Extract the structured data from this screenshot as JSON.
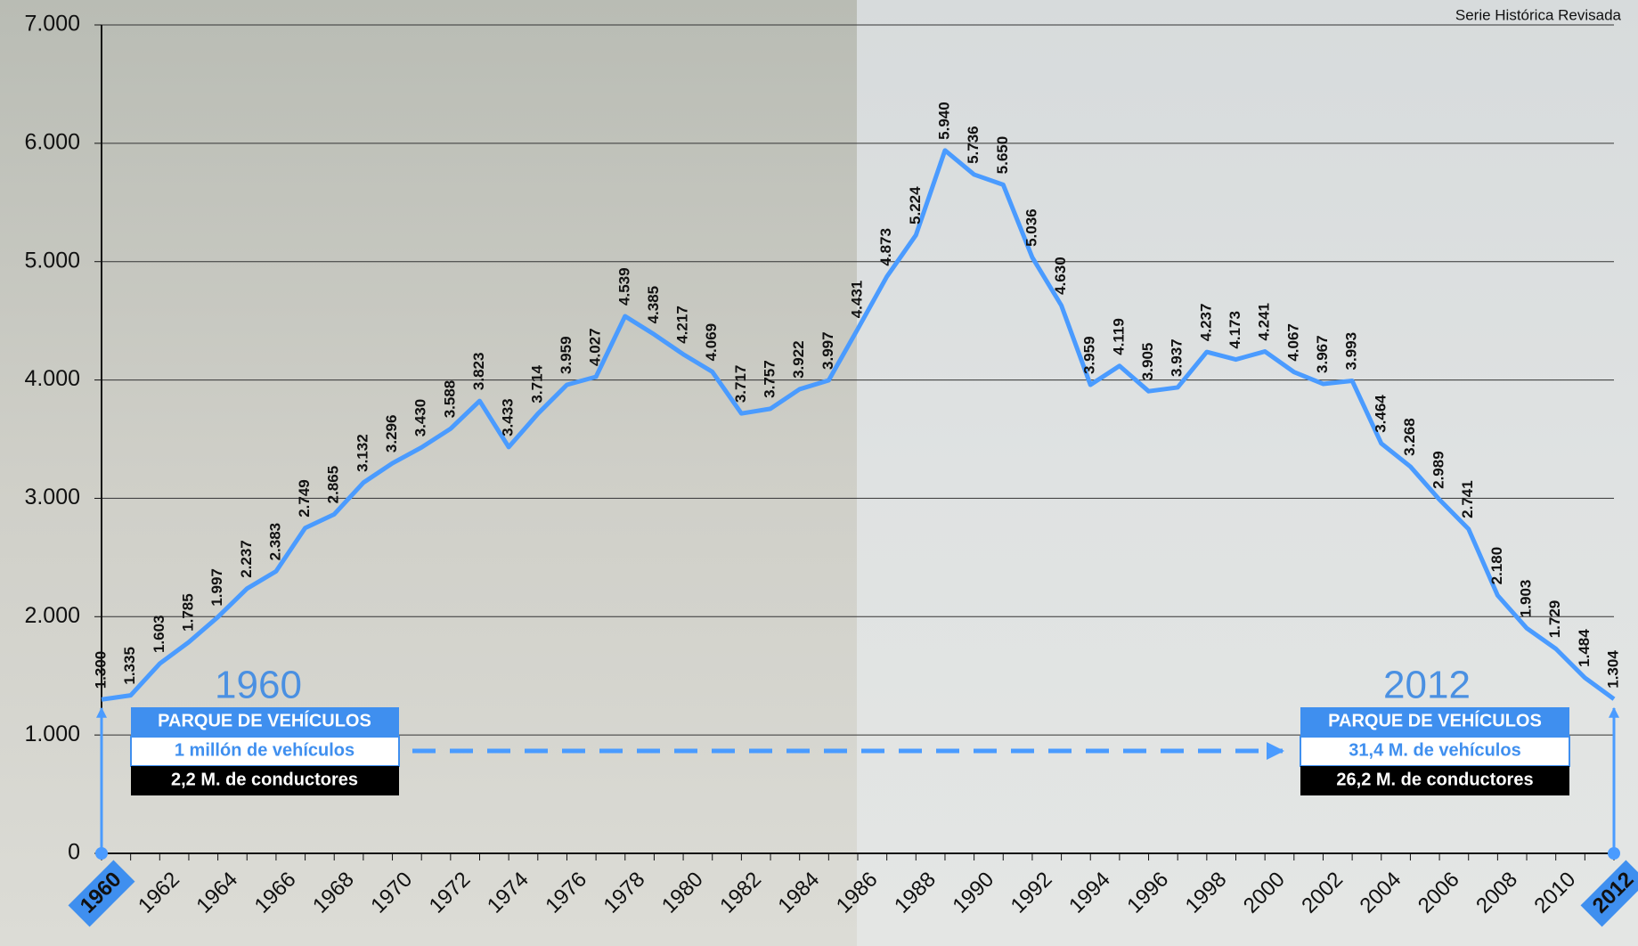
{
  "chart_data": {
    "type": "line",
    "subtitle": "Serie Histórica Revisada",
    "categories": [
      "1960",
      null,
      "1962",
      null,
      "1964",
      null,
      "1966",
      null,
      "1968",
      null,
      "1970",
      null,
      "1972",
      null,
      "1974",
      null,
      "1976",
      null,
      "1978",
      null,
      "1980",
      null,
      "1982",
      null,
      "1984",
      null,
      "1986",
      null,
      "1988",
      null,
      "1990",
      null,
      "1992",
      null,
      "1994",
      null,
      "1996",
      null,
      "1998",
      null,
      "2000",
      null,
      "2002",
      null,
      "2004",
      null,
      "2006",
      null,
      "2008",
      null,
      "2010",
      null,
      "2012"
    ],
    "values": [
      1300,
      1335,
      1603,
      1785,
      1997,
      2237,
      2383,
      2749,
      2865,
      3132,
      3296,
      3430,
      3588,
      3823,
      3433,
      3714,
      3959,
      4027,
      4539,
      4385,
      4217,
      4069,
      3717,
      3757,
      3922,
      3997,
      4431,
      4873,
      5224,
      5940,
      5736,
      5650,
      5036,
      4630,
      3959,
      4119,
      3905,
      3937,
      4237,
      4173,
      4241,
      4067,
      3967,
      3993,
      3464,
      3268,
      2989,
      2741,
      2180,
      1903,
      1729,
      1484,
      1304
    ],
    "value_labels": [
      "1.300",
      "1.335",
      "1.603",
      "1.785",
      "1.997",
      "2.237",
      "2.383",
      "2.749",
      "2.865",
      "3.132",
      "3.296",
      "3.430",
      "3.588",
      "3.823",
      "3.433",
      "3.714",
      "3.959",
      "4.027",
      "4.539",
      "4.385",
      "4.217",
      "4.069",
      "3.717",
      "3.757",
      "3.922",
      "3.997",
      "4.431",
      "4.873",
      "5.224",
      "5.940",
      "5.736",
      "5.650",
      "5.036",
      "4.630",
      "3.959",
      "4.119",
      "3.905",
      "3.937",
      "4.237",
      "4.173",
      "4.241",
      "4.067",
      "3.967",
      "3.993",
      "3.464",
      "3.268",
      "2.989",
      "2.741",
      "2.180",
      "1.903",
      "1.729",
      "1.484",
      "1.304"
    ],
    "color": "#4a9bff",
    "ylim": [
      0,
      7000
    ],
    "yticks": [
      0,
      {
        "value": 1000,
        "label": "1.000"
      },
      {
        "value": 2000,
        "label": "2.000"
      },
      {
        "value": 3000,
        "label": "3.000"
      },
      {
        "value": 4000,
        "label": "4.000"
      },
      {
        "value": 5000,
        "label": "5.000"
      },
      {
        "value": 6000,
        "label": "6.000"
      },
      {
        "value": 7000,
        "label": "7.000"
      }
    ],
    "grid": true,
    "annotations": {
      "left": {
        "year": "1960",
        "heading": "PARQUE DE VEHÍCULOS",
        "vehicles": "1 millón de vehículos",
        "drivers": "2,2 M. de conductores"
      },
      "right": {
        "year": "2012",
        "heading": "PARQUE DE VEHÍCULOS",
        "vehicles": "31,4 M. de vehículos",
        "drivers": "26,2 M. de conductores"
      }
    }
  }
}
